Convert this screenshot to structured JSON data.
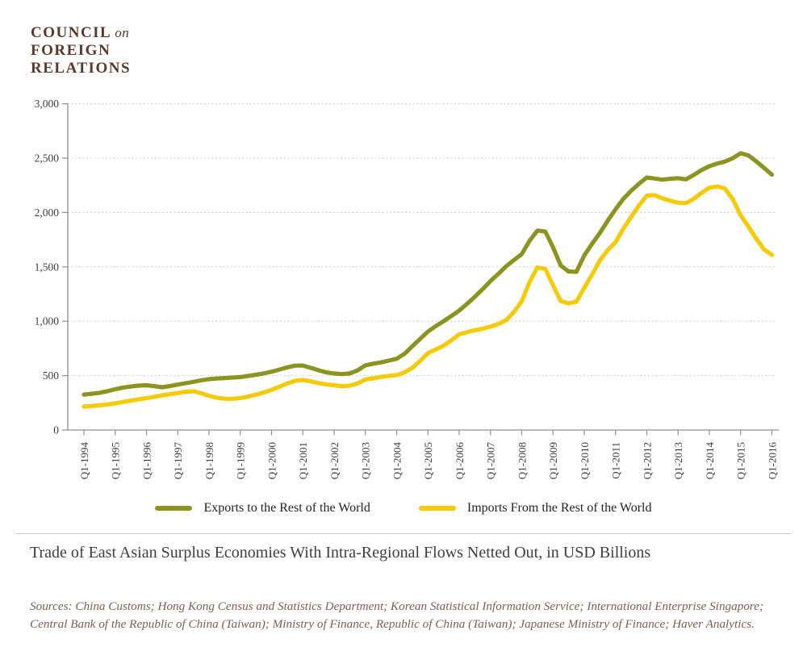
{
  "logo": {
    "council": "COUNCIL",
    "on": "on",
    "foreign": "FOREIGN",
    "relations": "RELATIONS",
    "color": "#5b382a"
  },
  "chart_data": {
    "type": "line",
    "title": "Trade of East Asian Surplus Economies With Intra-Regional Flows Netted Out, in USD Billions",
    "xlabel": "",
    "ylabel": "",
    "ylim": [
      0,
      3000
    ],
    "grid": "horizontal dotted",
    "legend_position": "bottom",
    "y_ticks": [
      {
        "value": 0,
        "label": "0"
      },
      {
        "value": 500,
        "label": "500"
      },
      {
        "value": 1000,
        "label": "1,000"
      },
      {
        "value": 1500,
        "label": "1,500"
      },
      {
        "value": 2000,
        "label": "2,000"
      },
      {
        "value": 2500,
        "label": "2,500"
      },
      {
        "value": 3000,
        "label": "3,000"
      }
    ],
    "x_ticks": [
      {
        "year": 1994,
        "label": "Q1-1994"
      },
      {
        "year": 1995,
        "label": "Q1-1995"
      },
      {
        "year": 1996,
        "label": "Q1-1996"
      },
      {
        "year": 1997,
        "label": "Q1-1997"
      },
      {
        "year": 1998,
        "label": "Q1-1998"
      },
      {
        "year": 1999,
        "label": "Q1-1999"
      },
      {
        "year": 2000,
        "label": "Q1-2000"
      },
      {
        "year": 2001,
        "label": "Q1-2001"
      },
      {
        "year": 2002,
        "label": "Q1-2002"
      },
      {
        "year": 2003,
        "label": "Q1-2003"
      },
      {
        "year": 2004,
        "label": "Q1-2004"
      },
      {
        "year": 2005,
        "label": "Q1-2005"
      },
      {
        "year": 2006,
        "label": "Q1-2006"
      },
      {
        "year": 2007,
        "label": "Q1-2007"
      },
      {
        "year": 2008,
        "label": "Q1-2008"
      },
      {
        "year": 2009,
        "label": "Q1-2009"
      },
      {
        "year": 2010,
        "label": "Q1-2010"
      },
      {
        "year": 2011,
        "label": "Q1-2011"
      },
      {
        "year": 2012,
        "label": "Q1-2012"
      },
      {
        "year": 2013,
        "label": "Q1-2013"
      },
      {
        "year": 2014,
        "label": "Q1-2014"
      },
      {
        "year": 2015,
        "label": "Q1-2015"
      },
      {
        "year": 2016,
        "label": "Q1-2016"
      }
    ],
    "x_start": 1994.0,
    "x_step": 0.25,
    "x_unit": "quarter",
    "series": [
      {
        "name": "Exports to the Rest of the World",
        "color": "#8c941f",
        "values": [
          325,
          333,
          342,
          357,
          375,
          390,
          400,
          408,
          412,
          403,
          393,
          404,
          418,
          430,
          443,
          457,
          468,
          474,
          478,
          482,
          487,
          497,
          508,
          520,
          536,
          556,
          576,
          592,
          593,
          572,
          550,
          530,
          520,
          514,
          520,
          548,
          595,
          610,
          622,
          638,
          655,
          700,
          770,
          838,
          905,
          955,
          1000,
          1048,
          1098,
          1160,
          1225,
          1295,
          1370,
          1435,
          1505,
          1562,
          1617,
          1740,
          1834,
          1826,
          1680,
          1512,
          1458,
          1455,
          1605,
          1712,
          1812,
          1925,
          2030,
          2125,
          2200,
          2265,
          2322,
          2312,
          2302,
          2310,
          2315,
          2305,
          2345,
          2390,
          2426,
          2450,
          2468,
          2500,
          2545,
          2525,
          2470,
          2410,
          2348
        ]
      },
      {
        "name": "Imports From the Rest of the World",
        "color": "#f7ca08",
        "values": [
          215,
          220,
          227,
          235,
          245,
          258,
          270,
          282,
          294,
          305,
          318,
          330,
          340,
          352,
          356,
          338,
          315,
          297,
          288,
          287,
          294,
          307,
          325,
          345,
          369,
          398,
          428,
          452,
          460,
          448,
          432,
          420,
          412,
          402,
          408,
          428,
          465,
          475,
          488,
          498,
          505,
          530,
          572,
          635,
          707,
          740,
          775,
          825,
          880,
          900,
          918,
          932,
          950,
          975,
          1010,
          1085,
          1184,
          1360,
          1495,
          1482,
          1330,
          1185,
          1165,
          1180,
          1308,
          1430,
          1560,
          1655,
          1728,
          1850,
          1960,
          2065,
          2155,
          2160,
          2130,
          2108,
          2090,
          2085,
          2125,
          2180,
          2228,
          2240,
          2220,
          2120,
          1975,
          1870,
          1760,
          1660,
          1610
        ]
      }
    ]
  },
  "footer": {
    "title": "Trade of East Asian Surplus Economies With Intra-Regional Flows Netted Out, in USD Billions",
    "sources": "Sources: China Customs; Hong Kong Census and Statistics Department; Korean Statistical Information Service; International Enterprise Singapore; Central Bank of the Republic of China (Taiwan); Ministry of Finance, Republic of China (Taiwan); Japanese Ministry of Finance; Haver Analytics."
  }
}
